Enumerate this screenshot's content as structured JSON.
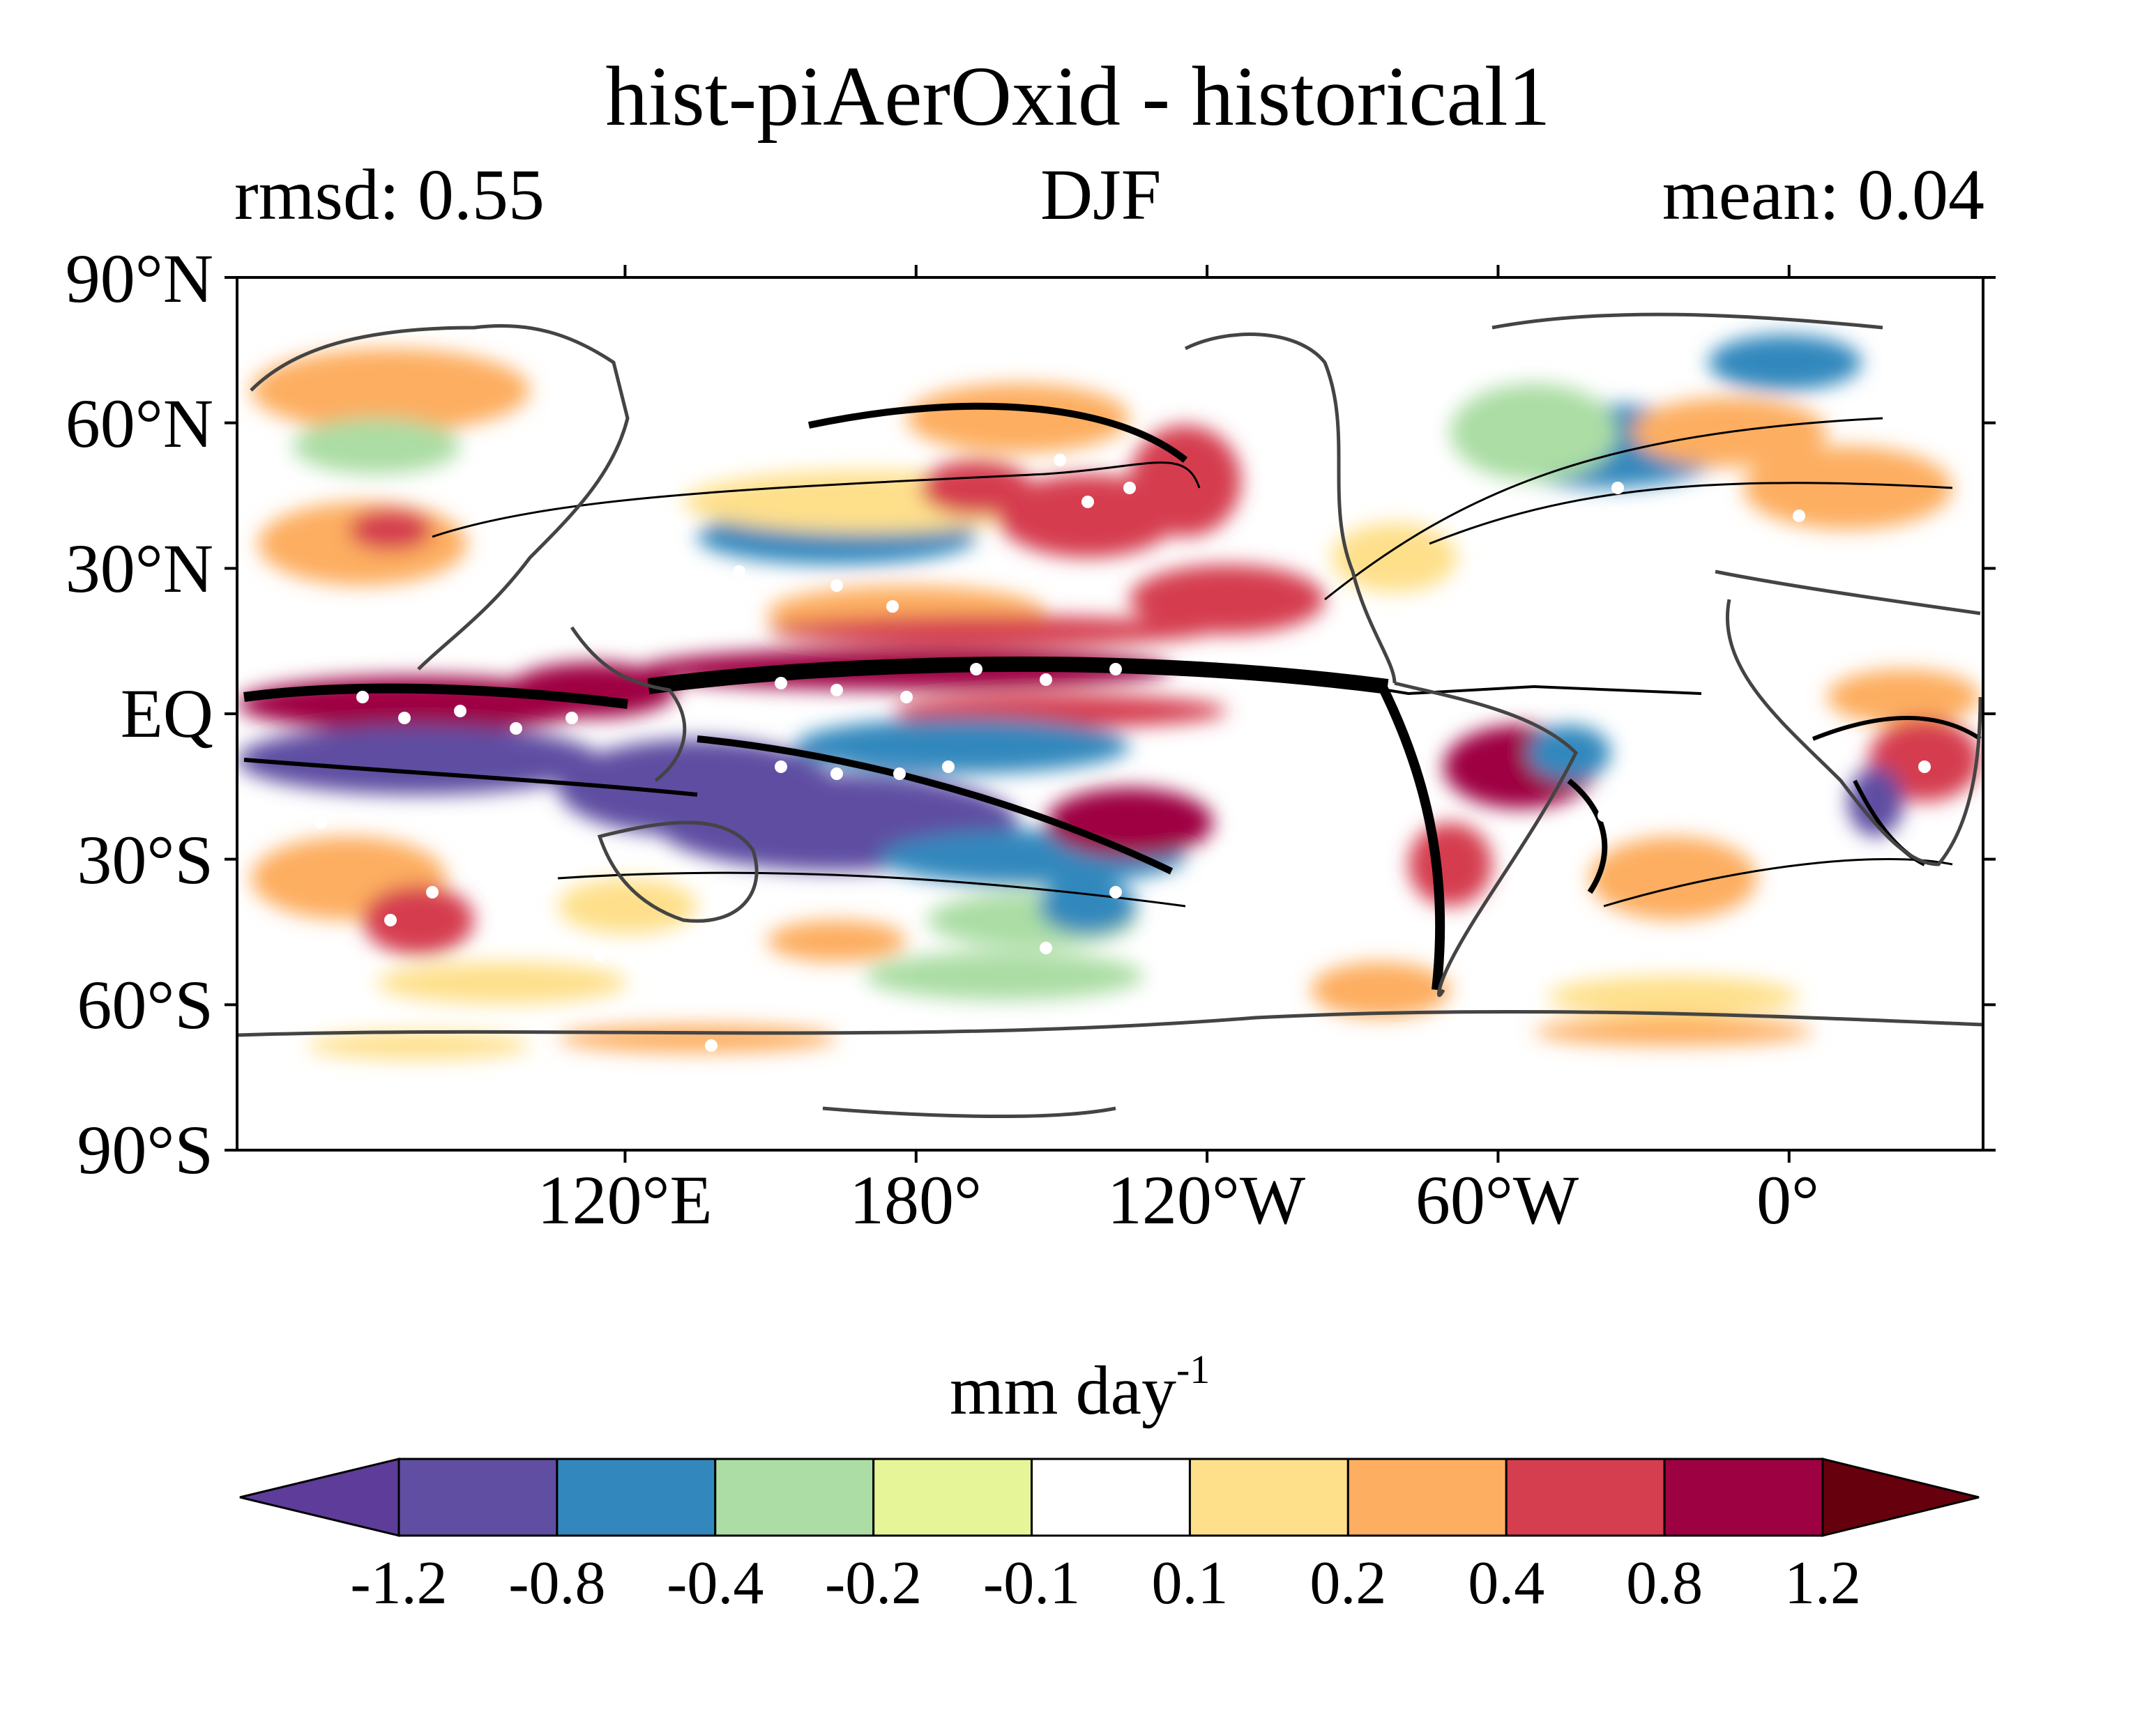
{
  "title": "hist-piAerOxid - historical1",
  "left_stat": "rmsd: 0.55",
  "season": "DJF",
  "right_stat": "mean: 0.04",
  "map": {
    "lat_ticks": [
      "90°N",
      "60°N",
      "30°N",
      "EQ",
      "30°S",
      "60°S",
      "90°S"
    ],
    "lat_values": [
      90,
      60,
      30,
      0,
      -30,
      -60,
      -90
    ],
    "lon_ticks": [
      "120°E",
      "180°",
      "120°W",
      "60°W",
      "0°"
    ],
    "lon_values": [
      120,
      180,
      240,
      300,
      360
    ],
    "lon_range_degrees_east": [
      40,
      400
    ],
    "lat_range": [
      -90,
      90
    ],
    "fill": "precipitation difference (filled contours)",
    "overlay": "black contour lines and white stippling"
  },
  "colorbar": {
    "units_main": "mm day",
    "units_exp": "-1",
    "levels": [
      "-1.2",
      "-0.8",
      "-0.4",
      "-0.2",
      "-0.1",
      "0.1",
      "0.2",
      "0.4",
      "0.8",
      "1.2"
    ],
    "colors": [
      "#5e3c99",
      "#5f4ea2",
      "#3288bd",
      "#abdda4",
      "#e6f598",
      "#ffffff",
      "#fee08b",
      "#fdae61",
      "#d53e4f",
      "#9e0142",
      "#67000d"
    ],
    "extend": "both"
  }
}
